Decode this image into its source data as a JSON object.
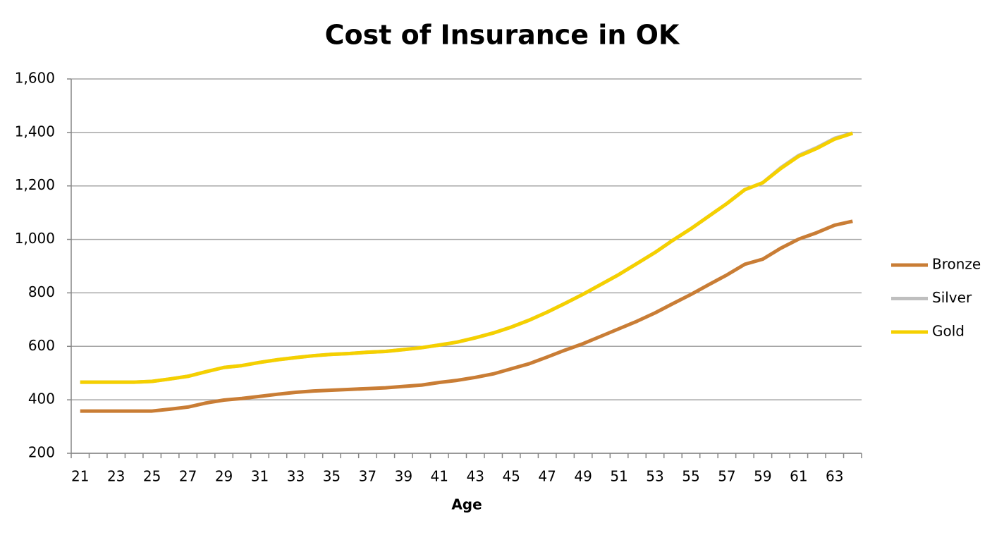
{
  "chart_data": {
    "type": "line",
    "title": "Cost of Insurance in OK",
    "x_label": "Age",
    "categories": [
      "21",
      null,
      "23",
      null,
      "25",
      null,
      "27",
      null,
      "29",
      null,
      "31",
      null,
      "33",
      null,
      "35",
      null,
      "37",
      null,
      "39",
      null,
      "41",
      null,
      "43",
      null,
      "45",
      null,
      "47",
      null,
      "49",
      null,
      "51",
      null,
      "53",
      null,
      "55",
      null,
      "57",
      null,
      "59",
      null,
      "61",
      null,
      "63",
      null
    ],
    "series": [
      {
        "name": "Bronze",
        "color": "#c97d35",
        "values": [
          358,
          358,
          358,
          358,
          358,
          365,
          373,
          388,
          399,
          405,
          413,
          421,
          428,
          433,
          436,
          439,
          442,
          445,
          450,
          455,
          465,
          473,
          484,
          497,
          516,
          535,
          560,
          586,
          610,
          638,
          666,
          694,
          725,
          760,
          794,
          831,
          867,
          907,
          926,
          967,
          1001,
          1025,
          1053,
          1068
        ]
      },
      {
        "name": "Silver",
        "color": "#bfbfbf",
        "values": [
          466,
          466,
          466,
          466,
          469,
          478,
          488,
          505,
          521,
          528,
          540,
          550,
          558,
          565,
          570,
          573,
          578,
          581,
          588,
          595,
          605,
          616,
          632,
          650,
          672,
          698,
          728,
          761,
          795,
          832,
          869,
          910,
          951,
          997,
          1040,
          1087,
          1134,
          1186,
          1212,
          1268,
          1314,
          1343,
          1378,
          1398
        ]
      },
      {
        "name": "Gold",
        "color": "#f5d000",
        "values": [
          466,
          466,
          466,
          466,
          469,
          478,
          488,
          505,
          521,
          528,
          540,
          550,
          558,
          565,
          570,
          573,
          578,
          581,
          588,
          595,
          605,
          616,
          632,
          650,
          672,
          698,
          728,
          761,
          795,
          832,
          869,
          910,
          951,
          997,
          1040,
          1087,
          1134,
          1186,
          1212,
          1265,
          1311,
          1340,
          1375,
          1397
        ]
      }
    ],
    "ylim": [
      200,
      1600
    ],
    "yticks": [
      200,
      400,
      600,
      800,
      {
        "value": 1000,
        "label": "1,000"
      },
      {
        "value": 1200,
        "label": "1,200"
      },
      {
        "value": 1400,
        "label": "1,400"
      },
      {
        "value": 1600,
        "label": "1,600"
      }
    ],
    "grid": true,
    "legend": "right"
  }
}
